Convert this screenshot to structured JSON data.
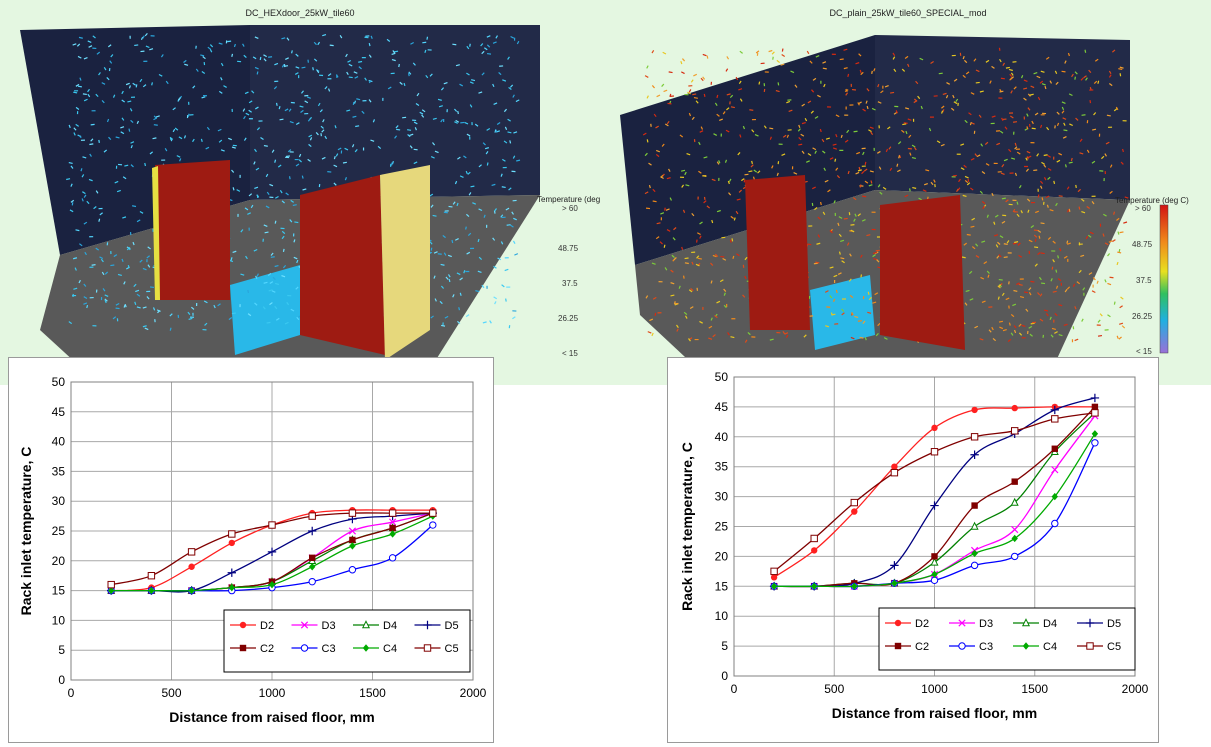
{
  "cfd_panels": [
    {
      "title": "DC_HEXdoor_25kW_tile60",
      "legend_title": "Temperature (deg",
      "legend_ticks": [
        "> 60",
        "48.75",
        "37.5",
        "26.25",
        "< 15"
      ]
    },
    {
      "title": "DC_plain_25kW_tile60_SPECIAL_mod",
      "legend_title": "Temperature (deg C)",
      "legend_ticks": [
        "> 60",
        "48.75",
        "37.5",
        "26.25",
        "< 15"
      ]
    }
  ],
  "colors": {
    "D2": "#ff2020",
    "D3": "#ff00ff",
    "D4": "#008000",
    "D5": "#000080",
    "C2": "#800000",
    "C3": "#0000ff",
    "C4": "#00aa00",
    "C5": "#800000"
  },
  "chart_data": [
    {
      "type": "line",
      "xlabel": "Distance from raised floor, mm",
      "ylabel": "Rack inlet temperature, C",
      "xlim": [
        0,
        2000
      ],
      "ylim": [
        0,
        50
      ],
      "xticks": [
        0,
        500,
        1000,
        1500,
        2000
      ],
      "yticks": [
        0,
        5,
        10,
        15,
        20,
        25,
        30,
        35,
        40,
        45,
        50
      ],
      "grid": true,
      "legend_position": "bottom-right",
      "x": [
        200,
        400,
        600,
        800,
        1000,
        1200,
        1400,
        1600,
        1800
      ],
      "series": [
        {
          "name": "D2",
          "marker": "circle-filled",
          "values": [
            15.0,
            15.5,
            19.0,
            23.0,
            26.0,
            28.0,
            28.5,
            28.5,
            28.5
          ]
        },
        {
          "name": "D3",
          "marker": "x",
          "values": [
            15.0,
            15.0,
            15.0,
            15.5,
            16.5,
            20.5,
            25.0,
            26.5,
            28.0
          ]
        },
        {
          "name": "D4",
          "marker": "triangle-open",
          "values": [
            15.0,
            15.0,
            15.0,
            15.5,
            16.5,
            20.0,
            23.5,
            25.5,
            28.0
          ]
        },
        {
          "name": "D5",
          "marker": "plus",
          "values": [
            15.0,
            15.0,
            15.0,
            18.0,
            21.5,
            25.0,
            27.0,
            27.5,
            28.0
          ]
        },
        {
          "name": "C2",
          "marker": "square-filled",
          "values": [
            15.0,
            15.0,
            15.0,
            15.5,
            16.5,
            20.5,
            23.5,
            25.5,
            28.0
          ]
        },
        {
          "name": "C3",
          "marker": "circle-open",
          "values": [
            15.0,
            15.0,
            15.0,
            15.0,
            15.5,
            16.5,
            18.5,
            20.5,
            26.0
          ]
        },
        {
          "name": "C4",
          "marker": "diamond-filled",
          "values": [
            15.0,
            15.0,
            15.0,
            15.5,
            16.0,
            19.0,
            22.5,
            24.5,
            27.5
          ]
        },
        {
          "name": "C5",
          "marker": "square-open",
          "values": [
            16.0,
            17.5,
            21.5,
            24.5,
            26.0,
            27.5,
            28.0,
            28.0,
            28.0
          ]
        }
      ],
      "legend_order": [
        "D2",
        "D3",
        "D4",
        "D5",
        "C2",
        "C3",
        "C4",
        "C5"
      ]
    },
    {
      "type": "line",
      "xlabel": "Distance from raised floor, mm",
      "ylabel": "Rack inlet temperature, C",
      "xlim": [
        0,
        2000
      ],
      "ylim": [
        0,
        50
      ],
      "xticks": [
        0,
        500,
        1000,
        1500,
        2000
      ],
      "yticks": [
        0,
        5,
        10,
        15,
        20,
        25,
        30,
        35,
        40,
        45,
        50
      ],
      "grid": true,
      "legend_position": "bottom-right",
      "x": [
        200,
        400,
        600,
        800,
        1000,
        1200,
        1400,
        1600,
        1800
      ],
      "series": [
        {
          "name": "D2",
          "marker": "circle-filled",
          "values": [
            16.5,
            21.0,
            27.5,
            35.0,
            41.5,
            44.5,
            44.8,
            45.0,
            45.0
          ]
        },
        {
          "name": "D3",
          "marker": "x",
          "values": [
            15.0,
            15.0,
            15.0,
            15.5,
            17.0,
            21.0,
            24.5,
            34.5,
            43.5
          ]
        },
        {
          "name": "D4",
          "marker": "triangle-open",
          "values": [
            15.0,
            15.0,
            15.5,
            15.5,
            19.0,
            25.0,
            29.0,
            37.5,
            44.0
          ]
        },
        {
          "name": "D5",
          "marker": "plus",
          "values": [
            15.0,
            15.0,
            15.5,
            18.5,
            28.5,
            37.0,
            40.5,
            44.5,
            46.5
          ]
        },
        {
          "name": "C2",
          "marker": "square-filled",
          "values": [
            15.0,
            15.0,
            15.5,
            15.5,
            20.0,
            28.5,
            32.5,
            38.0,
            45.0
          ]
        },
        {
          "name": "C3",
          "marker": "circle-open",
          "values": [
            15.0,
            15.0,
            15.0,
            15.5,
            16.0,
            18.5,
            20.0,
            25.5,
            39.0
          ]
        },
        {
          "name": "C4",
          "marker": "diamond-filled",
          "values": [
            15.0,
            15.0,
            15.0,
            15.5,
            17.0,
            20.5,
            23.0,
            30.0,
            40.5
          ]
        },
        {
          "name": "C5",
          "marker": "square-open",
          "values": [
            17.5,
            23.0,
            29.0,
            34.0,
            37.5,
            40.0,
            41.0,
            43.0,
            44.0
          ]
        }
      ],
      "legend_order": [
        "D2",
        "D3",
        "D4",
        "D5",
        "C2",
        "C3",
        "C4",
        "C5"
      ]
    }
  ]
}
